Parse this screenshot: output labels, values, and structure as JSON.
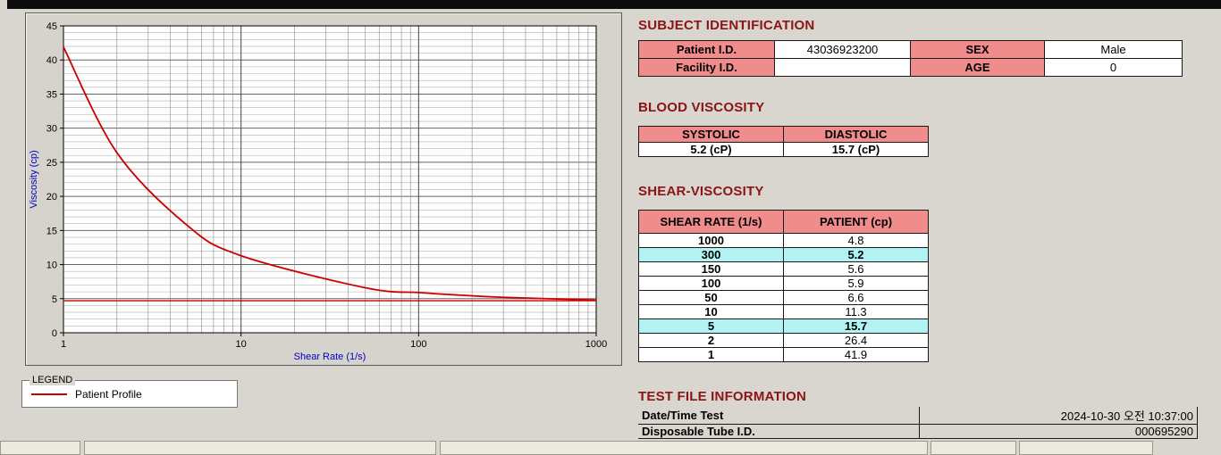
{
  "colors": {
    "heading": "#8B1414",
    "header_bg": "#F18C8C",
    "highlight_bg": "#B2F2F2",
    "curve": "#CC0000",
    "axis_label": "#0000CC",
    "panel_bg": "#D6D3CC",
    "page_bg": "#D9D6CF"
  },
  "legend": {
    "title": "LEGEND",
    "entries": [
      {
        "label": "Patient Profile"
      }
    ]
  },
  "subject_identification": {
    "heading": "SUBJECT IDENTIFICATION",
    "rows": [
      {
        "label": "Patient I.D.",
        "value": "43036923200",
        "label2": "SEX",
        "value2": "Male"
      },
      {
        "label": "Facility I.D.",
        "value": "",
        "label2": "AGE",
        "value2": "0"
      }
    ]
  },
  "blood_viscosity": {
    "heading": "BLOOD VISCOSITY",
    "headers": [
      "SYSTOLIC",
      "DIASTOLIC"
    ],
    "values": [
      "5.2 (cP)",
      "15.7 (cP)"
    ]
  },
  "shear_viscosity": {
    "heading": "SHEAR-VISCOSITY",
    "headers": [
      "SHEAR RATE (1/s)",
      "PATIENT (cp)"
    ],
    "rows": [
      {
        "shear_rate": "1000",
        "patient": "4.8",
        "highlight": false
      },
      {
        "shear_rate": "300",
        "patient": "5.2",
        "highlight": true
      },
      {
        "shear_rate": "150",
        "patient": "5.6",
        "highlight": false
      },
      {
        "shear_rate": "100",
        "patient": "5.9",
        "highlight": false
      },
      {
        "shear_rate": "50",
        "patient": "6.6",
        "highlight": false
      },
      {
        "shear_rate": "10",
        "patient": "11.3",
        "highlight": false
      },
      {
        "shear_rate": "5",
        "patient": "15.7",
        "highlight": true
      },
      {
        "shear_rate": "2",
        "patient": "26.4",
        "highlight": false
      },
      {
        "shear_rate": "1",
        "patient": "41.9",
        "highlight": false
      }
    ]
  },
  "test_file_information": {
    "heading": "TEST FILE INFORMATION",
    "rows": [
      {
        "label": "Date/Time Test",
        "value": "2024-10-30  오전 10:37:00"
      },
      {
        "label": "Disposable Tube I.D.",
        "value": "000695290"
      }
    ]
  },
  "chart_data": {
    "type": "line",
    "title": "",
    "xlabel": "Shear Rate (1/s)",
    "ylabel": "Viscosity (cp)",
    "x_scale": "log",
    "xlim": [
      1,
      1000
    ],
    "ylim": [
      0,
      45
    ],
    "x_ticks": [
      1,
      10,
      100,
      1000
    ],
    "y_ticks": [
      0,
      5,
      10,
      15,
      20,
      25,
      30,
      35,
      40,
      45
    ],
    "grid": "on",
    "legend_position": "below-left",
    "x": [
      1,
      2,
      5,
      10,
      50,
      100,
      150,
      300,
      1000
    ],
    "series": [
      {
        "name": "Patient Profile",
        "color": "#CC0000",
        "values": [
          41.9,
          26.4,
          15.7,
          11.3,
          6.6,
          5.9,
          5.6,
          5.2,
          4.8
        ]
      }
    ],
    "reference_line_y": 4.7
  }
}
